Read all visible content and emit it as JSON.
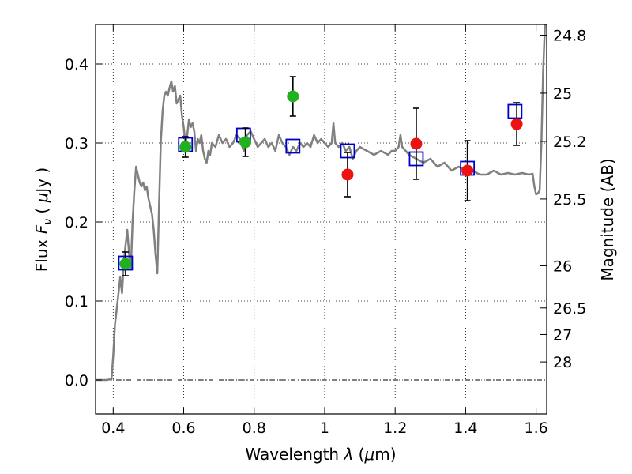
{
  "chart_data": {
    "type": "scatter",
    "xlabel_prefix": "Wavelength  ",
    "xlabel_symbol": "λ",
    "xlabel_units_open": " (",
    "xlabel_units_mu": "μ",
    "xlabel_units_close": "m)",
    "ylabel_prefix": "Flux  ",
    "ylabel_symbol_F": "F",
    "ylabel_symbol_nu": "ν",
    "ylabel_units_open": "  ( ",
    "ylabel_units_mu": "μ",
    "ylabel_units_close": "Jy )",
    "y2label": "Magnitude (AB)",
    "xlim": [
      0.35,
      1.63
    ],
    "ylim": [
      -0.043,
      0.45
    ],
    "xticks": [
      {
        "v": 0.4,
        "label": "0.4"
      },
      {
        "v": 0.6,
        "label": "0.6"
      },
      {
        "v": 0.8,
        "label": "0.8"
      },
      {
        "v": 1.0,
        "label": "1"
      },
      {
        "v": 1.2,
        "label": "1.2"
      },
      {
        "v": 1.4,
        "label": "1.4"
      },
      {
        "v": 1.6,
        "label": "1.6"
      }
    ],
    "yticks": [
      {
        "v": 0.0,
        "label": "0.0"
      },
      {
        "v": 0.1,
        "label": "0.1"
      },
      {
        "v": 0.2,
        "label": "0.2"
      },
      {
        "v": 0.3,
        "label": "0.3"
      },
      {
        "v": 0.4,
        "label": "0.4"
      }
    ],
    "mag_ticks": [
      {
        "v": 24.8,
        "label": "24.8"
      },
      {
        "v": 25.0,
        "label": "25"
      },
      {
        "v": 25.2,
        "label": "25.2"
      },
      {
        "v": 25.5,
        "label": "25.5"
      },
      {
        "v": 26.0,
        "label": "26"
      },
      {
        "v": 26.5,
        "label": "26.5"
      },
      {
        "v": 27.0,
        "label": "27"
      },
      {
        "v": 28.0,
        "label": "28"
      }
    ],
    "grid": true,
    "zero_line": true,
    "colors": {
      "model": "#808080",
      "optical": "#20b020",
      "nir": "#ee1111",
      "model_phot": "#0000cc",
      "errorbar": "#000000"
    },
    "series": [
      {
        "name": "SED model spectrum",
        "style": "line",
        "points": [
          [
            0.35,
            0.0
          ],
          [
            0.38,
            0.0
          ],
          [
            0.395,
            0.001
          ],
          [
            0.4,
            0.03
          ],
          [
            0.405,
            0.07
          ],
          [
            0.41,
            0.09
          ],
          [
            0.415,
            0.11
          ],
          [
            0.42,
            0.13
          ],
          [
            0.425,
            0.11
          ],
          [
            0.43,
            0.15
          ],
          [
            0.435,
            0.17
          ],
          [
            0.44,
            0.19
          ],
          [
            0.445,
            0.16
          ],
          [
            0.45,
            0.14
          ],
          [
            0.455,
            0.2
          ],
          [
            0.46,
            0.24
          ],
          [
            0.465,
            0.27
          ],
          [
            0.47,
            0.26
          ],
          [
            0.475,
            0.25
          ],
          [
            0.48,
            0.245
          ],
          [
            0.485,
            0.25
          ],
          [
            0.49,
            0.24
          ],
          [
            0.495,
            0.245
          ],
          [
            0.5,
            0.23
          ],
          [
            0.505,
            0.22
          ],
          [
            0.51,
            0.21
          ],
          [
            0.515,
            0.19
          ],
          [
            0.52,
            0.16
          ],
          [
            0.525,
            0.135
          ],
          [
            0.53,
            0.22
          ],
          [
            0.535,
            0.3
          ],
          [
            0.54,
            0.34
          ],
          [
            0.545,
            0.36
          ],
          [
            0.55,
            0.365
          ],
          [
            0.555,
            0.36
          ],
          [
            0.56,
            0.37
          ],
          [
            0.565,
            0.378
          ],
          [
            0.57,
            0.365
          ],
          [
            0.575,
            0.372
          ],
          [
            0.58,
            0.35
          ],
          [
            0.585,
            0.355
          ],
          [
            0.59,
            0.36
          ],
          [
            0.595,
            0.335
          ],
          [
            0.6,
            0.32
          ],
          [
            0.605,
            0.3
          ],
          [
            0.61,
            0.31
          ],
          [
            0.615,
            0.33
          ],
          [
            0.62,
            0.32
          ],
          [
            0.625,
            0.325
          ],
          [
            0.63,
            0.315
          ],
          [
            0.635,
            0.29
          ],
          [
            0.64,
            0.305
          ],
          [
            0.645,
            0.3
          ],
          [
            0.65,
            0.31
          ],
          [
            0.655,
            0.29
          ],
          [
            0.66,
            0.28
          ],
          [
            0.665,
            0.275
          ],
          [
            0.67,
            0.29
          ],
          [
            0.675,
            0.285
          ],
          [
            0.68,
            0.3
          ],
          [
            0.69,
            0.295
          ],
          [
            0.7,
            0.31
          ],
          [
            0.71,
            0.3
          ],
          [
            0.72,
            0.305
          ],
          [
            0.73,
            0.295
          ],
          [
            0.74,
            0.3
          ],
          [
            0.75,
            0.31
          ],
          [
            0.76,
            0.305
          ],
          [
            0.77,
            0.29
          ],
          [
            0.78,
            0.31
          ],
          [
            0.79,
            0.315
          ],
          [
            0.8,
            0.305
          ],
          [
            0.81,
            0.295
          ],
          [
            0.82,
            0.3
          ],
          [
            0.83,
            0.305
          ],
          [
            0.84,
            0.295
          ],
          [
            0.85,
            0.3
          ],
          [
            0.86,
            0.29
          ],
          [
            0.87,
            0.31
          ],
          [
            0.88,
            0.3
          ],
          [
            0.89,
            0.295
          ],
          [
            0.9,
            0.285
          ],
          [
            0.91,
            0.295
          ],
          [
            0.92,
            0.29
          ],
          [
            0.93,
            0.3
          ],
          [
            0.94,
            0.295
          ],
          [
            0.95,
            0.3
          ],
          [
            0.96,
            0.295
          ],
          [
            0.97,
            0.31
          ],
          [
            0.98,
            0.3
          ],
          [
            0.99,
            0.305
          ],
          [
            1.0,
            0.3
          ],
          [
            1.01,
            0.295
          ],
          [
            1.02,
            0.3
          ],
          [
            1.025,
            0.325
          ],
          [
            1.03,
            0.3
          ],
          [
            1.04,
            0.295
          ],
          [
            1.05,
            0.3
          ],
          [
            1.06,
            0.29
          ],
          [
            1.07,
            0.295
          ],
          [
            1.08,
            0.28
          ],
          [
            1.09,
            0.29
          ],
          [
            1.1,
            0.295
          ],
          [
            1.12,
            0.29
          ],
          [
            1.14,
            0.285
          ],
          [
            1.16,
            0.29
          ],
          [
            1.18,
            0.285
          ],
          [
            1.19,
            0.29
          ],
          [
            1.2,
            0.29
          ],
          [
            1.21,
            0.295
          ],
          [
            1.215,
            0.31
          ],
          [
            1.22,
            0.295
          ],
          [
            1.23,
            0.29
          ],
          [
            1.24,
            0.285
          ],
          [
            1.26,
            0.28
          ],
          [
            1.28,
            0.275
          ],
          [
            1.3,
            0.28
          ],
          [
            1.32,
            0.27
          ],
          [
            1.34,
            0.275
          ],
          [
            1.36,
            0.265
          ],
          [
            1.38,
            0.27
          ],
          [
            1.4,
            0.265
          ],
          [
            1.42,
            0.265
          ],
          [
            1.44,
            0.26
          ],
          [
            1.46,
            0.26
          ],
          [
            1.48,
            0.265
          ],
          [
            1.5,
            0.26
          ],
          [
            1.52,
            0.262
          ],
          [
            1.54,
            0.26
          ],
          [
            1.56,
            0.262
          ],
          [
            1.58,
            0.26
          ],
          [
            1.59,
            0.261
          ],
          [
            1.595,
            0.245
          ],
          [
            1.6,
            0.235
          ],
          [
            1.605,
            0.236
          ],
          [
            1.61,
            0.24
          ],
          [
            1.615,
            0.3
          ],
          [
            1.62,
            0.39
          ],
          [
            1.625,
            0.45
          ]
        ]
      },
      {
        "name": "Model photometry",
        "style": "open-square",
        "points": [
          [
            0.435,
            0.148
          ],
          [
            0.605,
            0.298
          ],
          [
            0.77,
            0.31
          ],
          [
            0.91,
            0.296
          ],
          [
            1.065,
            0.29
          ],
          [
            1.26,
            0.28
          ],
          [
            1.405,
            0.268
          ],
          [
            1.54,
            0.34
          ]
        ]
      },
      {
        "name": "Optical photometry",
        "style": "filled-circle",
        "points": [
          [
            0.435,
            0.147,
            0.015
          ],
          [
            0.605,
            0.295,
            0.013
          ],
          [
            0.775,
            0.301,
            0.018
          ],
          [
            0.91,
            0.359,
            0.025
          ]
        ]
      },
      {
        "name": "NIR photometry",
        "style": "filled-circle",
        "points": [
          [
            1.065,
            0.26,
            0.028
          ],
          [
            1.26,
            0.299,
            0.045
          ],
          [
            1.405,
            0.265,
            0.038
          ],
          [
            1.545,
            0.324,
            0.027
          ]
        ]
      }
    ]
  }
}
